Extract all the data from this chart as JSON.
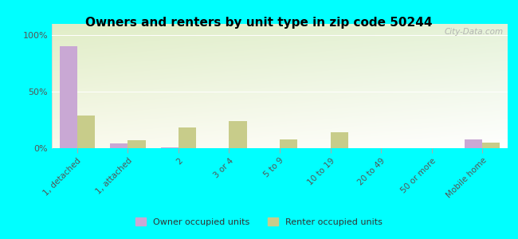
{
  "title": "Owners and renters by unit type in zip code 50244",
  "categories": [
    "1, detached",
    "1, attached",
    "2",
    "3 or 4",
    "5 to 9",
    "10 to 19",
    "20 to 49",
    "50 or more",
    "Mobile home"
  ],
  "owner_values": [
    90,
    4,
    1,
    0,
    0,
    0,
    0,
    0,
    8
  ],
  "renter_values": [
    29,
    7,
    18,
    24,
    8,
    14,
    0,
    0,
    5
  ],
  "owner_color": "#c9a8d4",
  "renter_color": "#c8cc8a",
  "background_color": "#00ffff",
  "yticks": [
    0,
    50,
    100
  ],
  "ylim": [
    0,
    110
  ],
  "bar_width": 0.35,
  "legend_owner": "Owner occupied units",
  "legend_renter": "Renter occupied units",
  "watermark": "City-Data.com"
}
